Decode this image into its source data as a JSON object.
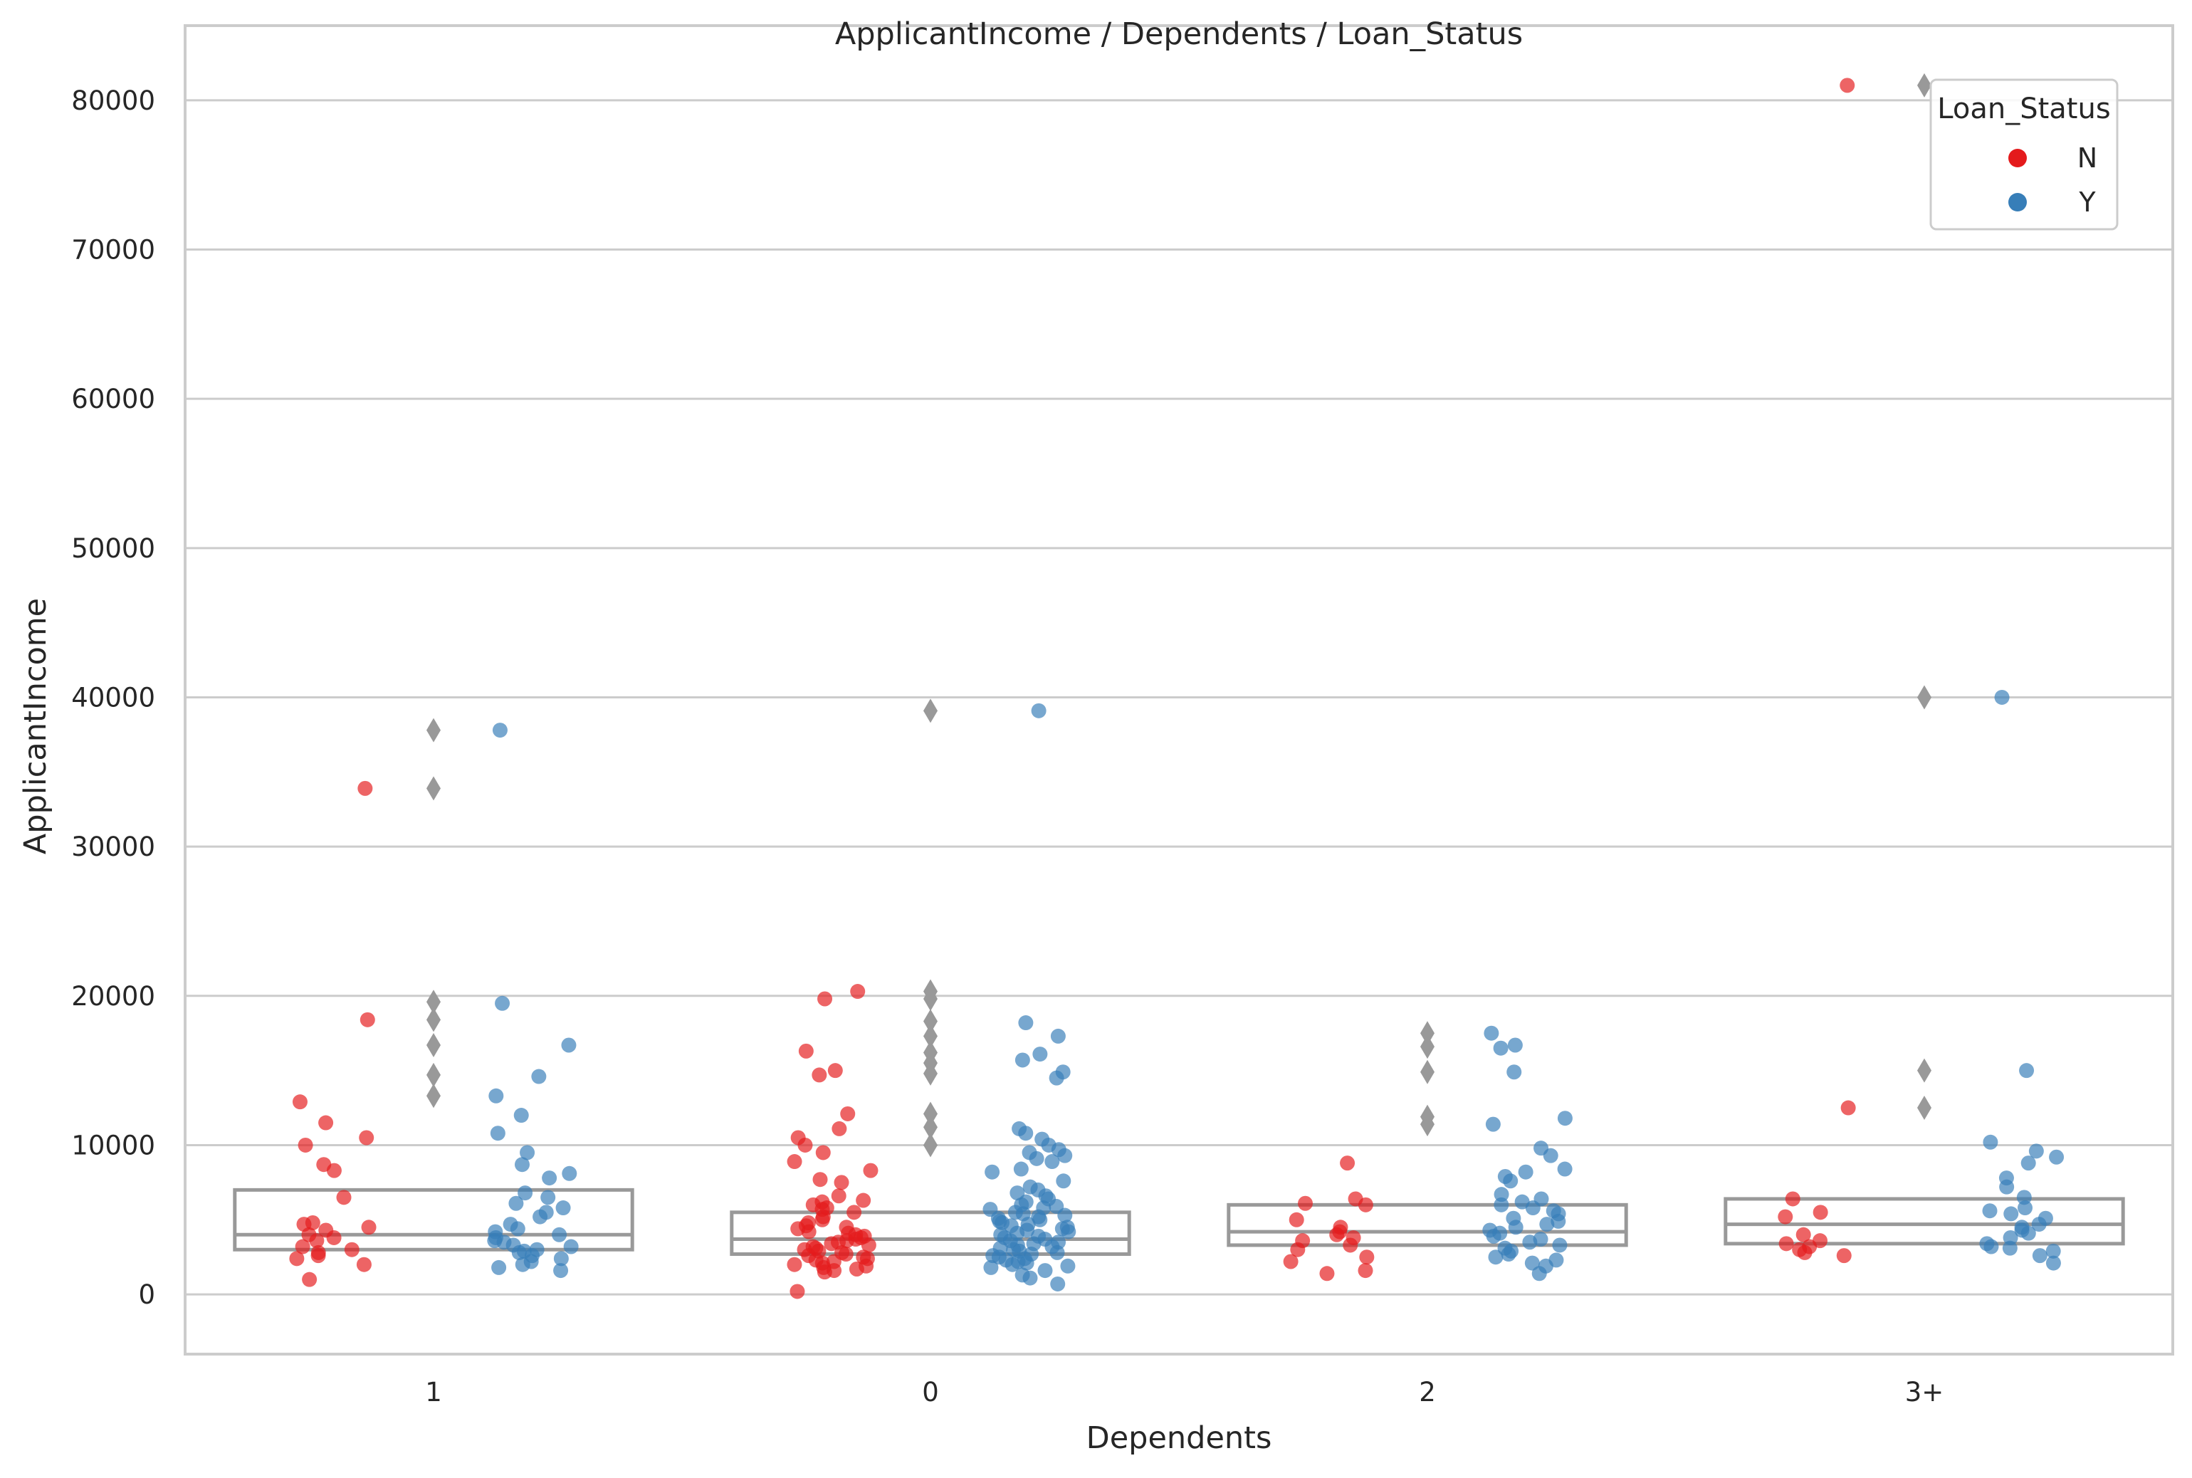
{
  "chart_data": {
    "type": "scatter",
    "subtype": "box-with-stripplot",
    "title": "ApplicantIncome / Dependents / Loan_Status",
    "xlabel": "Dependents",
    "ylabel": "ApplicantIncome",
    "categories": [
      "1",
      "0",
      "2",
      "3+"
    ],
    "ylim": [
      -4000,
      85000
    ],
    "yticks": [
      0,
      10000,
      20000,
      30000,
      40000,
      50000,
      60000,
      70000,
      80000
    ],
    "grid": true,
    "legend": {
      "title": "Loan_Status",
      "placement": "top-right",
      "entries": [
        {
          "label": "N",
          "color": "#e41a1c"
        },
        {
          "label": "Y",
          "color": "#377eb8"
        }
      ]
    },
    "colors": {
      "N": "#e41a1c",
      "Y": "#377eb8",
      "box": "#999999",
      "grid": "#cccccc"
    },
    "boxes": [
      {
        "category": "1",
        "q1": 3000,
        "median": 4000,
        "q3": 7000
      },
      {
        "category": "0",
        "q1": 2700,
        "median": 3700,
        "q3": 5500
      },
      {
        "category": "2",
        "q1": 3300,
        "median": 4200,
        "q3": 6000
      },
      {
        "category": "3+",
        "q1": 3400,
        "median": 4700,
        "q3": 6400
      }
    ],
    "outliers": [
      {
        "category": "1",
        "values": [
          37800,
          33900,
          19600,
          18400,
          16700,
          14700,
          13300
        ]
      },
      {
        "category": "0",
        "values": [
          39100,
          20300,
          19800,
          18300,
          17300,
          16200,
          15500,
          14800,
          12100,
          11200,
          10000
        ]
      },
      {
        "category": "2",
        "values": [
          17500,
          16600,
          14900,
          11900,
          11400
        ]
      },
      {
        "category": "3+",
        "values": [
          81000,
          40000,
          15000,
          12500
        ]
      }
    ],
    "series": [
      {
        "name": "N",
        "points": [
          {
            "x": "1",
            "values": [
              33900,
              18400,
              12900,
              11500,
              10500,
              10000,
              8700,
              8300,
              6500,
              4800,
              4700,
              4500,
              4300,
              4000,
              3800,
              3600,
              3200,
              3000,
              2800,
              2600,
              2400,
              2000,
              1000
            ]
          },
          {
            "x": "0",
            "values": [
              20300,
              19800,
              16300,
              15000,
              14700,
              12100,
              11100,
              10500,
              10000,
              9500,
              8900,
              8300,
              7700,
              7500,
              6600,
              6300,
              6000,
              6200,
              5800,
              5700,
              5500,
              5200,
              5000,
              4800,
              4600,
              4500,
              4400,
              4200,
              4100,
              4000,
              3900,
              3800,
              3700,
              3600,
              3500,
              3400,
              3300,
              3200,
              3100,
              3000,
              2900,
              2800,
              2700,
              2600,
              2500,
              2400,
              2300,
              2200,
              2100,
              2000,
              1900,
              1800,
              1700,
              1600,
              1500,
              200
            ]
          },
          {
            "x": "2",
            "values": [
              8800,
              6400,
              6100,
              6000,
              5000,
              4500,
              4200,
              4000,
              3800,
              3600,
              3300,
              3000,
              2500,
              2200,
              1600,
              1400
            ]
          },
          {
            "x": "3+",
            "values": [
              81000,
              12500,
              6400,
              5500,
              5200,
              4000,
              3600,
              3400,
              3200,
              3000,
              2800,
              2600
            ]
          }
        ]
      },
      {
        "name": "Y",
        "points": [
          {
            "x": "1",
            "values": [
              37800,
              19500,
              16700,
              14600,
              13300,
              12000,
              10800,
              9500,
              8700,
              8100,
              7800,
              6800,
              6500,
              6100,
              5800,
              5500,
              5200,
              4700,
              4400,
              4200,
              4000,
              3800,
              3600,
              3500,
              3300,
              3200,
              3000,
              2900,
              2800,
              2600,
              2400,
              2200,
              2000,
              1800,
              1600
            ]
          },
          {
            "x": "0",
            "values": [
              39100,
              18200,
              17300,
              16100,
              15700,
              14900,
              14500,
              11100,
              10800,
              10400,
              10000,
              9700,
              9500,
              9300,
              9100,
              8900,
              8400,
              8200,
              7600,
              7200,
              7000,
              6800,
              6600,
              6400,
              6200,
              6000,
              5900,
              5800,
              5700,
              5500,
              5400,
              5300,
              5200,
              5100,
              5000,
              4900,
              4800,
              4700,
              4600,
              4500,
              4400,
              4300,
              4200,
              4100,
              4000,
              3900,
              3800,
              3700,
              3600,
              3500,
              3400,
              3300,
              3200,
              3100,
              3000,
              2900,
              2800,
              2700,
              2600,
              2500,
              2400,
              2300,
              2200,
              2100,
              2000,
              1900,
              1800,
              1600,
              1300,
              1100,
              700
            ]
          },
          {
            "x": "2",
            "values": [
              17500,
              16700,
              16500,
              14900,
              11800,
              11400,
              9800,
              9300,
              8400,
              8200,
              7900,
              7600,
              6700,
              6400,
              6200,
              6000,
              5800,
              5600,
              5400,
              5100,
              4900,
              4700,
              4500,
              4300,
              4100,
              3900,
              3700,
              3500,
              3300,
              3100,
              2900,
              2700,
              2500,
              2300,
              2100,
              1900,
              1400
            ]
          },
          {
            "x": "3+",
            "values": [
              40000,
              15000,
              10200,
              9600,
              9200,
              8800,
              7800,
              7200,
              6500,
              5800,
              5600,
              5400,
              5100,
              4700,
              4500,
              4300,
              4100,
              3800,
              3400,
              3200,
              3100,
              2900,
              2600,
              2100
            ]
          }
        ]
      }
    ]
  }
}
